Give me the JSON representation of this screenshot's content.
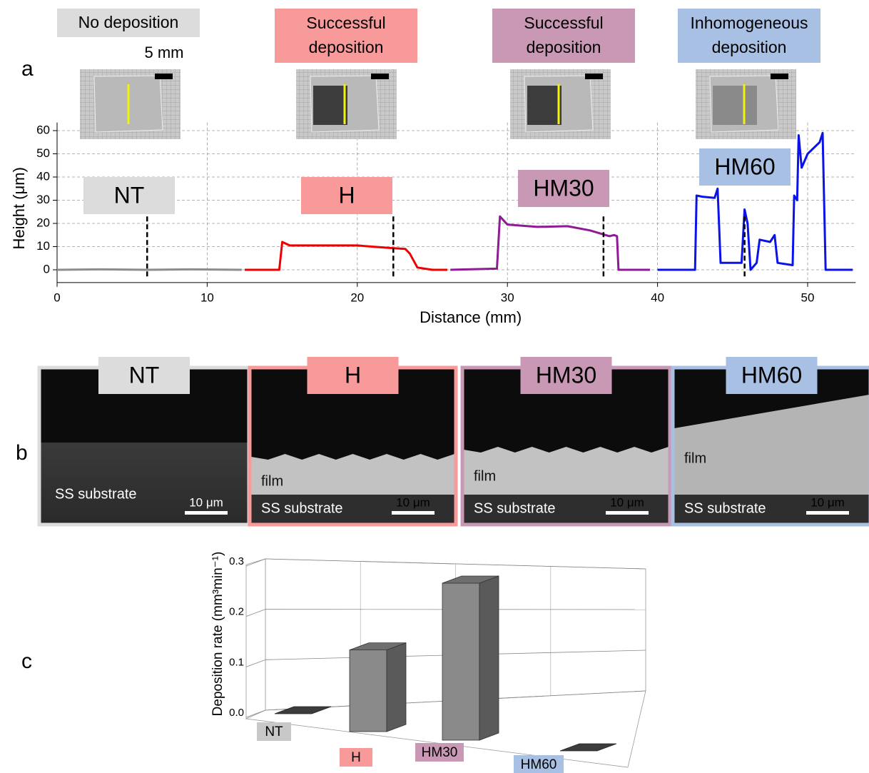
{
  "panel_labels": [
    "a",
    "b",
    "c"
  ],
  "chart_data": [
    {
      "type": "line",
      "x_label": "Distance (mm)",
      "y_label": "Height (μm)",
      "xlim": [
        0,
        53.2
      ],
      "ylim": [
        -5.5,
        63.5
      ],
      "xticks": [
        0,
        10,
        20,
        30,
        40,
        50
      ],
      "yticks": [
        0,
        10,
        20,
        30,
        40,
        50,
        60
      ],
      "grid": true,
      "scale_label": "5 mm",
      "marker_x": [
        6,
        22.4,
        36.4,
        45.8
      ],
      "series": [
        {
          "name": "NT",
          "status": "No deposition",
          "color": "#8c8c8c",
          "label_color": "#dcdcdc",
          "x": [
            0,
            3,
            6,
            9,
            12.3
          ],
          "values": [
            0,
            0.2,
            0,
            0.2,
            0
          ]
        },
        {
          "name": "H",
          "status": "Successful deposition",
          "color": "#ee0000",
          "label_color": "#f99a9a",
          "x": [
            12.5,
            14.8,
            15.0,
            15.5,
            18,
            20,
            22,
            23.2,
            23.5,
            24,
            25,
            26
          ],
          "values": [
            0,
            0,
            12,
            10.5,
            10.5,
            10.5,
            9.5,
            9,
            7,
            1,
            0,
            0
          ]
        },
        {
          "name": "HM30",
          "status": "Successful deposition",
          "color": "#8e1a96",
          "label_color": "#c898b4",
          "x": [
            26.2,
            29.3,
            29.5,
            30,
            32,
            34,
            35.5,
            36.8,
            37.1,
            37.3,
            37.4,
            39.5
          ],
          "values": [
            0,
            0.5,
            23,
            19.5,
            18.5,
            18.8,
            17,
            14.5,
            15,
            14.5,
            0,
            0
          ]
        },
        {
          "name": "HM60",
          "status": "Inhomogeneous deposition",
          "color": "#0a14e6",
          "label_color": "#a8c0e4",
          "x": [
            40,
            42.5,
            42.6,
            43,
            43.8,
            44,
            44.2,
            45.6,
            45.8,
            46,
            46.2,
            46.6,
            46.8,
            47.5,
            47.8,
            48,
            49,
            49.1,
            49.3,
            49.4,
            49.6,
            50,
            50.8,
            51,
            51.2,
            53
          ],
          "values": [
            0,
            0,
            32,
            31.5,
            31,
            35,
            3,
            3,
            26,
            20,
            0,
            3,
            13,
            12,
            15,
            3,
            2,
            32,
            30,
            58,
            44,
            50,
            55,
            59,
            0,
            0
          ]
        }
      ]
    },
    {
      "type": "bar",
      "y_label": "Deposition rate (mm³min⁻¹)",
      "categories": [
        "NT",
        "H",
        "HM30",
        "HM60"
      ],
      "values": [
        0,
        0.13,
        0.25,
        0
      ],
      "label_colors": [
        "#c8c8c8",
        "#f99a9a",
        "#c898b4",
        "#a8c0e4"
      ],
      "color": "#8a8a8a",
      "ylim": [
        0,
        0.3
      ],
      "yticks": [
        {
          "value": 0,
          "label": "0.0"
        },
        0.1,
        0.2,
        0.3
      ],
      "grid": true
    }
  ],
  "micrographs": [
    {
      "label": "NT",
      "color": "#dcdcdc",
      "texts": [
        "SS substrate"
      ],
      "scale_bar": "10 μm"
    },
    {
      "label": "H",
      "color": "#f99a9a",
      "texts": [
        "film",
        "SS substrate"
      ],
      "scale_bar": "10 μm"
    },
    {
      "label": "HM30",
      "color": "#c898b4",
      "texts": [
        "film",
        "SS substrate"
      ],
      "scale_bar": "10 μm"
    },
    {
      "label": "HM60",
      "color": "#a8c0e4",
      "texts": [
        "film",
        "SS substrate"
      ],
      "scale_bar": "10 μm"
    }
  ]
}
